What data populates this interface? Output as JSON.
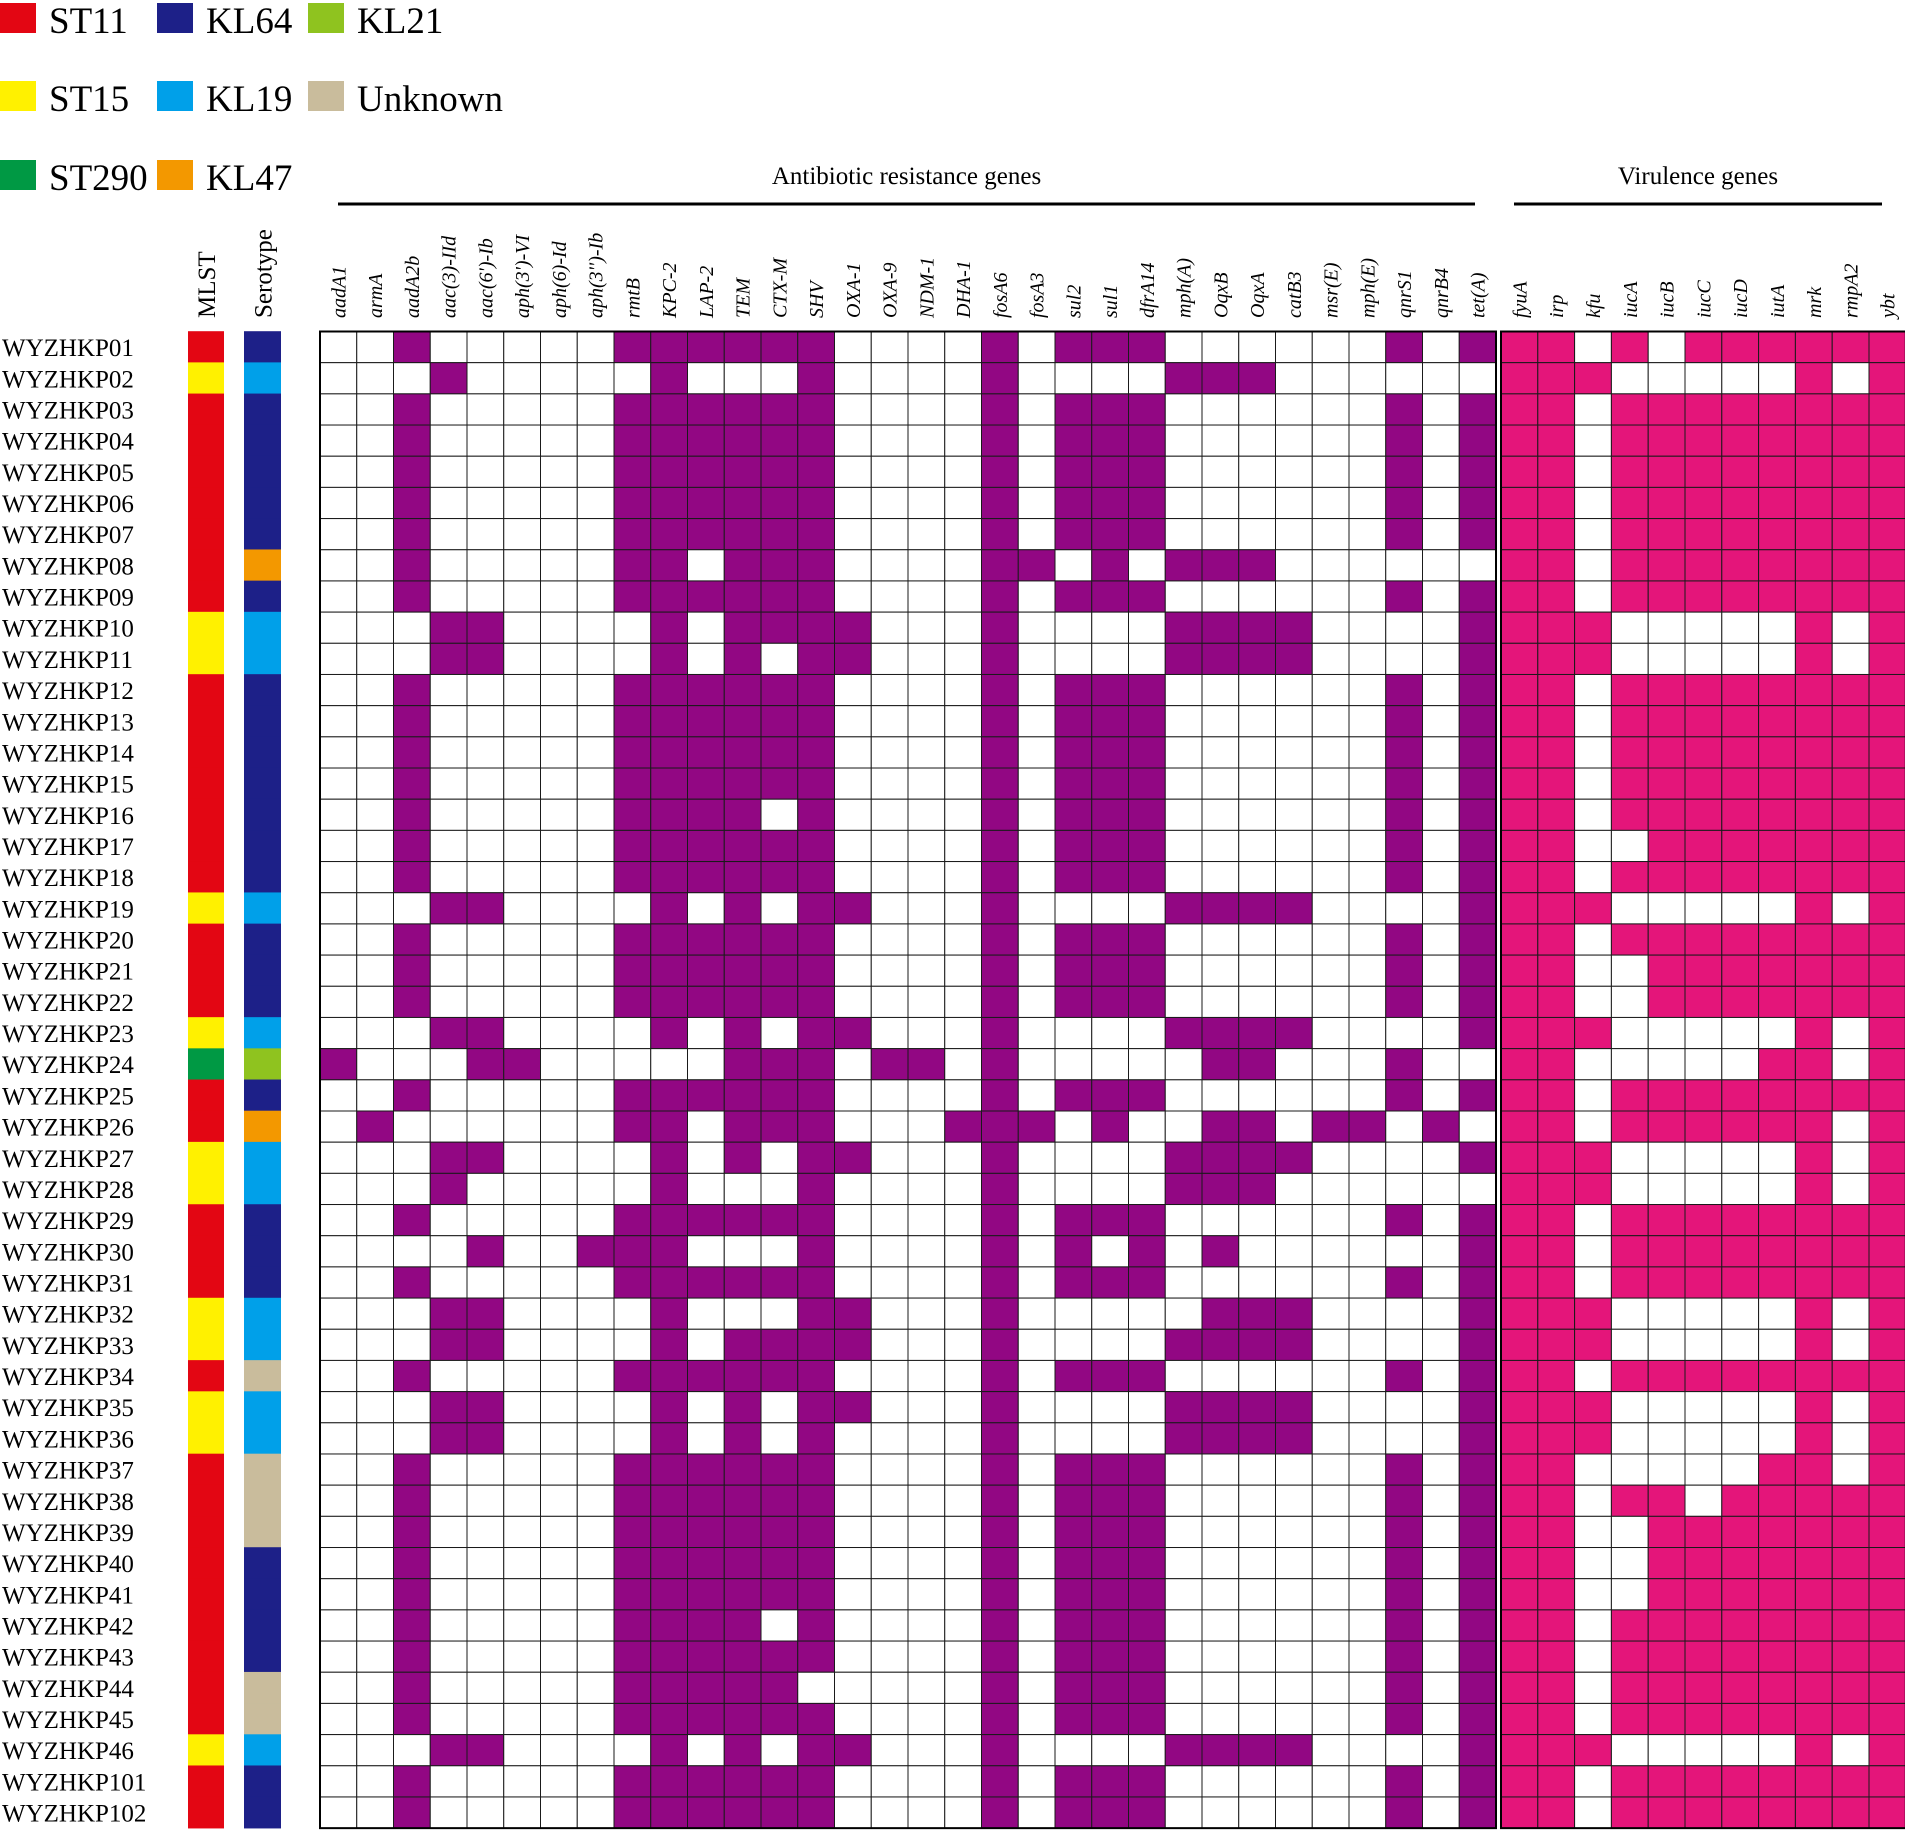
{
  "chart_data": {
    "type": "heatmap",
    "legend": [
      {
        "label": "ST11",
        "color": "#e30613"
      },
      {
        "label": "KL64",
        "color": "#1d2088"
      },
      {
        "label": "KL21",
        "color": "#8fc31f"
      },
      {
        "label": "ST15",
        "color": "#fff100"
      },
      {
        "label": "KL19",
        "color": "#00a0e9"
      },
      {
        "label": "Unknown",
        "color": "#c9bc9c"
      },
      {
        "label": "ST290",
        "color": "#009944"
      },
      {
        "label": "KL47",
        "color": "#f39800"
      }
    ],
    "track_labels": {
      "mlst": "MLST",
      "serotype": "Serotype"
    },
    "groups": [
      {
        "label": "Antibiotic resistance genes",
        "color": "#920783"
      },
      {
        "label": "Virulence genes",
        "color": "#e4157a"
      }
    ],
    "resistance_genes": [
      "aadA1",
      "armA",
      "aadA2b",
      "aac(3)-IId",
      "aac(6')-Ib",
      "aph(3')-VI",
      "aph(6)-Id",
      "aph(3'')-Ib",
      "rmtB",
      "KPC-2",
      "LAP-2",
      "TEM",
      "CTX-M",
      "SHV",
      "OXA-1",
      "OXA-9",
      "NDM-1",
      "DHA-1",
      "fosA6",
      "fosA3",
      "sul2",
      "sul1",
      "dfrA14",
      "mph(A)",
      "OqxB",
      "OqxA",
      "catB3",
      "msr(E)",
      "mph(E)",
      "qnrS1",
      "qnrB4",
      "tet(A)"
    ],
    "virulence_genes": [
      "fyuA",
      "irp",
      "kfu",
      "iucA",
      "iucB",
      "iucC",
      "iucD",
      "iutA",
      "mrk",
      "rmpA2",
      "ybt"
    ],
    "isolates": [
      {
        "id": "WYZHKP01",
        "mlst": "ST11",
        "serotype": "KL64",
        "res": "00100000111111000010111000000101",
        "vir": "11010111111"
      },
      {
        "id": "WYZHKP02",
        "mlst": "ST15",
        "serotype": "KL19",
        "res": "00010000010001000010000111000000",
        "vir": "11100000101"
      },
      {
        "id": "WYZHKP03",
        "mlst": "ST11",
        "serotype": "KL64",
        "res": "00100000111111000010111000000101",
        "vir": "11011111111"
      },
      {
        "id": "WYZHKP04",
        "mlst": "ST11",
        "serotype": "KL64",
        "res": "00100000111111000010111000000101",
        "vir": "11011111111"
      },
      {
        "id": "WYZHKP05",
        "mlst": "ST11",
        "serotype": "KL64",
        "res": "00100000111111000010111000000101",
        "vir": "11011111111"
      },
      {
        "id": "WYZHKP06",
        "mlst": "ST11",
        "serotype": "KL64",
        "res": "00100000111111000010111000000101",
        "vir": "11011111111"
      },
      {
        "id": "WYZHKP07",
        "mlst": "ST11",
        "serotype": "KL64",
        "res": "00100000111111000010111000000101",
        "vir": "11011111111"
      },
      {
        "id": "WYZHKP08",
        "mlst": "ST11",
        "serotype": "KL47",
        "res": "00100000110111000011010111000000",
        "vir": "11011111111"
      },
      {
        "id": "WYZHKP09",
        "mlst": "ST11",
        "serotype": "KL64",
        "res": "00100000111111000010111000000101",
        "vir": "11011111111"
      },
      {
        "id": "WYZHKP10",
        "mlst": "ST15",
        "serotype": "KL19",
        "res": "00011000010111100010000111100001",
        "vir": "11100000101"
      },
      {
        "id": "WYZHKP11",
        "mlst": "ST15",
        "serotype": "KL19",
        "res": "00011000010101100010000111100001",
        "vir": "11100000101"
      },
      {
        "id": "WYZHKP12",
        "mlst": "ST11",
        "serotype": "KL64",
        "res": "00100000111111000010111000000101",
        "vir": "11011111111"
      },
      {
        "id": "WYZHKP13",
        "mlst": "ST11",
        "serotype": "KL64",
        "res": "00100000111111000010111000000101",
        "vir": "11011111111"
      },
      {
        "id": "WYZHKP14",
        "mlst": "ST11",
        "serotype": "KL64",
        "res": "00100000111111000010111000000101",
        "vir": "11011111111"
      },
      {
        "id": "WYZHKP15",
        "mlst": "ST11",
        "serotype": "KL64",
        "res": "00100000111111000010111000000101",
        "vir": "11011111111"
      },
      {
        "id": "WYZHKP16",
        "mlst": "ST11",
        "serotype": "KL64",
        "res": "00100000111101000010111000000101",
        "vir": "11011111111"
      },
      {
        "id": "WYZHKP17",
        "mlst": "ST11",
        "serotype": "KL64",
        "res": "00100000111111000010111000000101",
        "vir": "11001111111"
      },
      {
        "id": "WYZHKP18",
        "mlst": "ST11",
        "serotype": "KL64",
        "res": "00100000111111000010111000000101",
        "vir": "11011111111"
      },
      {
        "id": "WYZHKP19",
        "mlst": "ST15",
        "serotype": "KL19",
        "res": "00011000010101100010000111100001",
        "vir": "11100000101"
      },
      {
        "id": "WYZHKP20",
        "mlst": "ST11",
        "serotype": "KL64",
        "res": "00100000111111000010111000000101",
        "vir": "11011111111"
      },
      {
        "id": "WYZHKP21",
        "mlst": "ST11",
        "serotype": "KL64",
        "res": "00100000111111000010111000000101",
        "vir": "11001111111"
      },
      {
        "id": "WYZHKP22",
        "mlst": "ST11",
        "serotype": "KL64",
        "res": "00100000111111000010111000000101",
        "vir": "11001111111"
      },
      {
        "id": "WYZHKP23",
        "mlst": "ST15",
        "serotype": "KL19",
        "res": "00011000010101100010000111100001",
        "vir": "11100000101"
      },
      {
        "id": "WYZHKP24",
        "mlst": "ST290",
        "serotype": "KL21",
        "res": "10001100000111011010000011000100",
        "vir": "11000001101"
      },
      {
        "id": "WYZHKP25",
        "mlst": "ST11",
        "serotype": "KL64",
        "res": "00100000111111000010111000000101",
        "vir": "11011111111"
      },
      {
        "id": "WYZHKP26",
        "mlst": "ST11",
        "serotype": "KL47",
        "res": "01000000110111000111010011011010",
        "vir": "11011111101"
      },
      {
        "id": "WYZHKP27",
        "mlst": "ST15",
        "serotype": "KL19",
        "res": "00011000010101100010000111100001",
        "vir": "11100000101"
      },
      {
        "id": "WYZHKP28",
        "mlst": "ST15",
        "serotype": "KL19",
        "res": "00010000010001000010000111000000",
        "vir": "11100000101"
      },
      {
        "id": "WYZHKP29",
        "mlst": "ST11",
        "serotype": "KL64",
        "res": "00100000111111000010111000000101",
        "vir": "11011111111"
      },
      {
        "id": "WYZHKP30",
        "mlst": "ST11",
        "serotype": "KL64",
        "res": "00001001110001000010101010000001",
        "vir": "11011111111"
      },
      {
        "id": "WYZHKP31",
        "mlst": "ST11",
        "serotype": "KL64",
        "res": "00100000111111000010111000000101",
        "vir": "11011111111"
      },
      {
        "id": "WYZHKP32",
        "mlst": "ST15",
        "serotype": "KL19",
        "res": "00011000010001100010000011100001",
        "vir": "11100000101"
      },
      {
        "id": "WYZHKP33",
        "mlst": "ST15",
        "serotype": "KL19",
        "res": "00011000010111100010000111100001",
        "vir": "11100000101"
      },
      {
        "id": "WYZHKP34",
        "mlst": "ST11",
        "serotype": "Unknown",
        "res": "00100000111111000010111000000101",
        "vir": "11011111111"
      },
      {
        "id": "WYZHKP35",
        "mlst": "ST15",
        "serotype": "KL19",
        "res": "00011000010101100010000111100001",
        "vir": "11100000101"
      },
      {
        "id": "WYZHKP36",
        "mlst": "ST15",
        "serotype": "KL19",
        "res": "00011000010101000010000111100001",
        "vir": "11100000101"
      },
      {
        "id": "WYZHKP37",
        "mlst": "ST11",
        "serotype": "Unknown",
        "res": "00100000111111000010111000000101",
        "vir": "11000001101"
      },
      {
        "id": "WYZHKP38",
        "mlst": "ST11",
        "serotype": "Unknown",
        "res": "00100000111111000010111000000101",
        "vir": "11011011111"
      },
      {
        "id": "WYZHKP39",
        "mlst": "ST11",
        "serotype": "Unknown",
        "res": "00100000111111000010111000000101",
        "vir": "11001111111"
      },
      {
        "id": "WYZHKP40",
        "mlst": "ST11",
        "serotype": "KL64",
        "res": "00100000111111000010111000000101",
        "vir": "11001111111"
      },
      {
        "id": "WYZHKP41",
        "mlst": "ST11",
        "serotype": "KL64",
        "res": "00100000111111000010111000000101",
        "vir": "11001111111"
      },
      {
        "id": "WYZHKP42",
        "mlst": "ST11",
        "serotype": "KL64",
        "res": "00100000111101000010111000000101",
        "vir": "11011111111"
      },
      {
        "id": "WYZHKP43",
        "mlst": "ST11",
        "serotype": "KL64",
        "res": "00100000111111000010111000000101",
        "vir": "11011111111"
      },
      {
        "id": "WYZHKP44",
        "mlst": "ST11",
        "serotype": "Unknown",
        "res": "00100000111110000010111000000101",
        "vir": "11011111111"
      },
      {
        "id": "WYZHKP45",
        "mlst": "ST11",
        "serotype": "Unknown",
        "res": "00100000111111000010111000000101",
        "vir": "11011111111"
      },
      {
        "id": "WYZHKP46",
        "mlst": "ST15",
        "serotype": "KL19",
        "res": "00011000010101100010000111100001",
        "vir": "11100000101"
      },
      {
        "id": "WYZHKP101",
        "mlst": "ST11",
        "serotype": "KL64",
        "res": "00100000111111000010111000000101",
        "vir": "11011111111"
      },
      {
        "id": "WYZHKP102",
        "mlst": "ST11",
        "serotype": "KL64",
        "res": "00100000111111000010111000000101",
        "vir": "11011111111"
      }
    ]
  }
}
